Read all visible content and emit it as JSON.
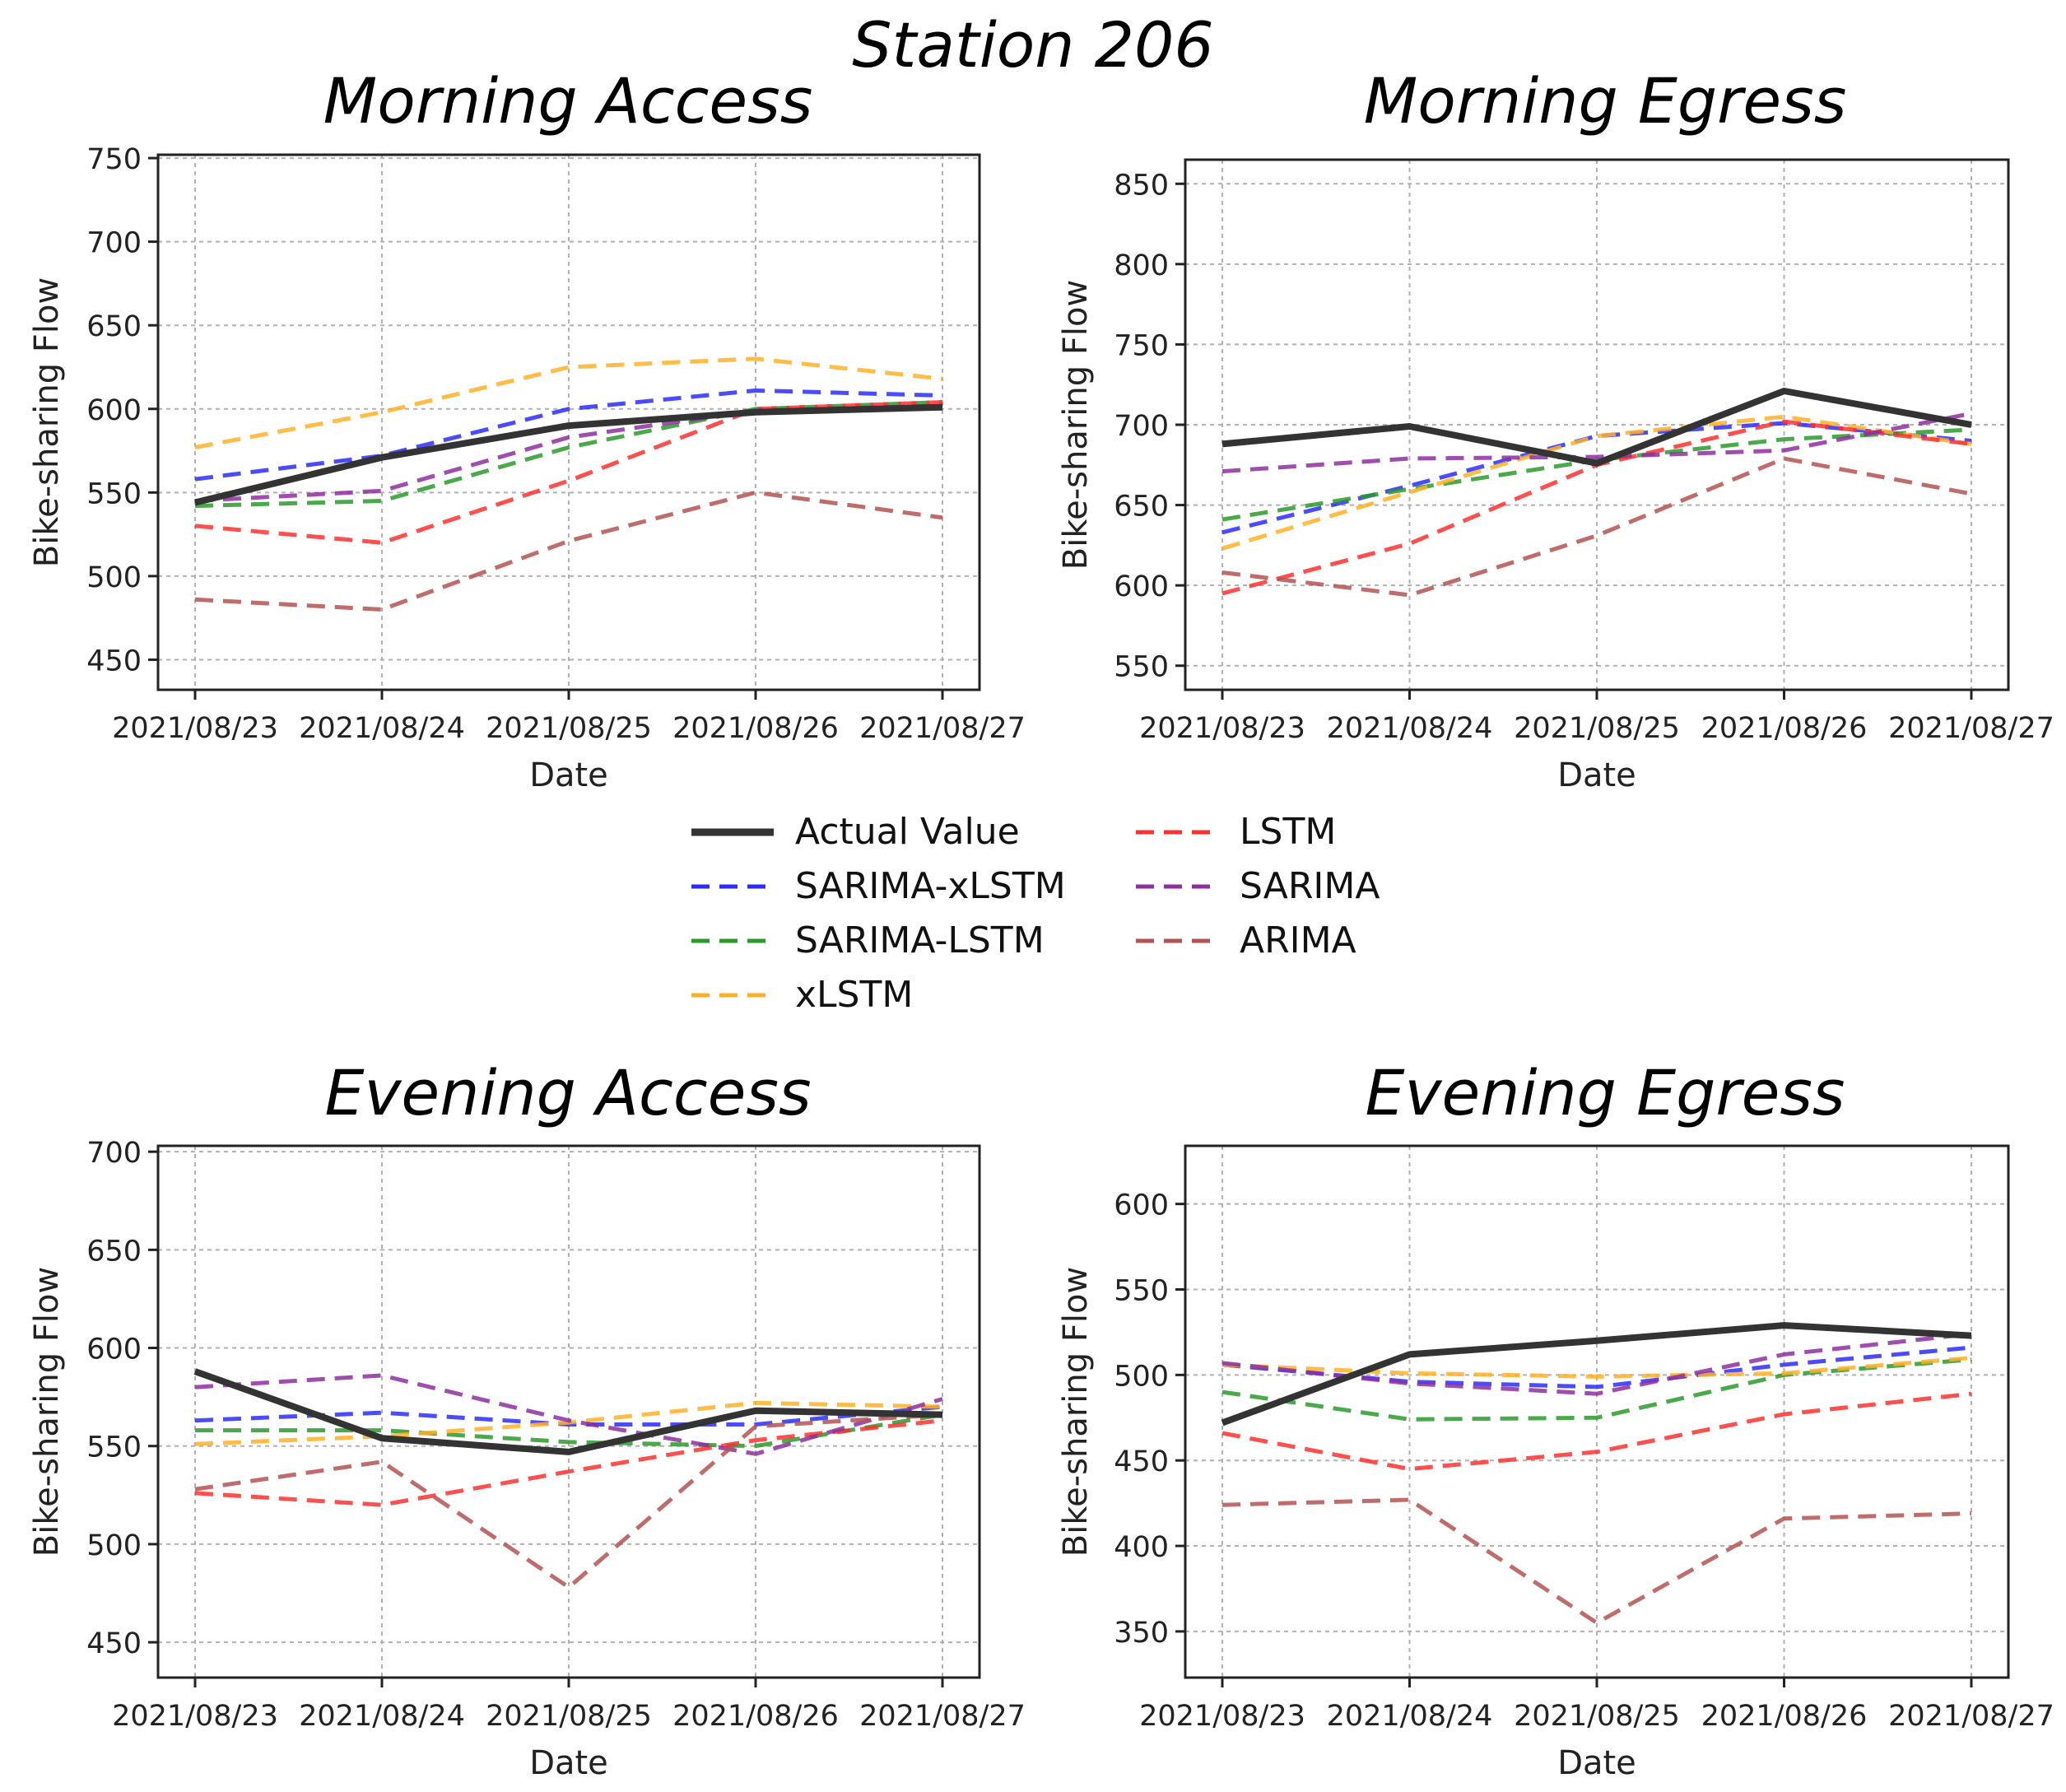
{
  "figure": {
    "title": "Station 206"
  },
  "legend": {
    "items": [
      {
        "name": "Actual Value",
        "color": "#333333",
        "style": "solid"
      },
      {
        "name": "SARIMA-xLSTM",
        "color": "#2b2bff",
        "style": "dashed"
      },
      {
        "name": "SARIMA-LSTM",
        "color": "#2a9a2a",
        "style": "dashed"
      },
      {
        "name": "xLSTM",
        "color": "#ffb027",
        "style": "dashed"
      },
      {
        "name": "LSTM",
        "color": "#ff3030",
        "style": "dashed"
      },
      {
        "name": "SARIMA",
        "color": "#8e2fa0",
        "style": "dashed"
      },
      {
        "name": "ARIMA",
        "color": "#b45252",
        "style": "dashed"
      }
    ]
  },
  "chart_data": [
    {
      "type": "line",
      "title": "Morning Access",
      "xlabel": "Date",
      "ylabel": "Bike-sharing Flow",
      "categories": [
        "2021/08/23",
        "2021/08/24",
        "2021/08/25",
        "2021/08/26",
        "2021/08/27"
      ],
      "yticks": [
        450,
        500,
        550,
        600,
        650,
        700,
        750
      ],
      "ylim": [
        432,
        752
      ],
      "grid": true,
      "series": [
        {
          "name": "Actual Value",
          "values": [
            544,
            571,
            590,
            598,
            601
          ]
        },
        {
          "name": "SARIMA-xLSTM",
          "values": [
            558,
            572,
            600,
            611,
            608
          ]
        },
        {
          "name": "SARIMA-LSTM",
          "values": [
            542,
            545,
            577,
            600,
            604
          ]
        },
        {
          "name": "xLSTM",
          "values": [
            577,
            598,
            625,
            630,
            618
          ]
        },
        {
          "name": "LSTM",
          "values": [
            530,
            520,
            557,
            600,
            604
          ]
        },
        {
          "name": "SARIMA",
          "values": [
            545,
            551,
            583,
            599,
            602
          ]
        },
        {
          "name": "ARIMA",
          "values": [
            486,
            480,
            521,
            550,
            535
          ]
        }
      ]
    },
    {
      "type": "line",
      "title": "Morning Egress",
      "xlabel": "Date",
      "ylabel": "Bike-sharing Flow",
      "categories": [
        "2021/08/23",
        "2021/08/24",
        "2021/08/25",
        "2021/08/26",
        "2021/08/27"
      ],
      "yticks": [
        550,
        600,
        650,
        700,
        750,
        800,
        850
      ],
      "ylim": [
        535,
        865
      ],
      "grid": true,
      "series": [
        {
          "name": "Actual Value",
          "values": [
            688,
            699,
            676,
            721,
            700
          ]
        },
        {
          "name": "SARIMA-xLSTM",
          "values": [
            633,
            662,
            693,
            701,
            690
          ]
        },
        {
          "name": "SARIMA-LSTM",
          "values": [
            641,
            660,
            678,
            691,
            697
          ]
        },
        {
          "name": "xLSTM",
          "values": [
            623,
            658,
            693,
            705,
            688
          ]
        },
        {
          "name": "LSTM",
          "values": [
            595,
            626,
            675,
            702,
            688
          ]
        },
        {
          "name": "SARIMA",
          "values": [
            671,
            679,
            680,
            684,
            707
          ]
        },
        {
          "name": "ARIMA",
          "values": [
            608,
            594,
            631,
            679,
            657
          ]
        }
      ]
    },
    {
      "type": "line",
      "title": "Evening Access",
      "xlabel": "Date",
      "ylabel": "Bike-sharing Flow",
      "categories": [
        "2021/08/23",
        "2021/08/24",
        "2021/08/25",
        "2021/08/26",
        "2021/08/27"
      ],
      "yticks": [
        450,
        500,
        550,
        600,
        650,
        700
      ],
      "ylim": [
        432,
        703
      ],
      "grid": true,
      "series": [
        {
          "name": "Actual Value",
          "values": [
            588,
            554,
            547,
            568,
            566
          ]
        },
        {
          "name": "SARIMA-xLSTM",
          "values": [
            563,
            567,
            561,
            561,
            570
          ]
        },
        {
          "name": "SARIMA-LSTM",
          "values": [
            558,
            558,
            552,
            550,
            566
          ]
        },
        {
          "name": "xLSTM",
          "values": [
            551,
            555,
            562,
            572,
            570
          ]
        },
        {
          "name": "LSTM",
          "values": [
            526,
            520,
            537,
            553,
            563
          ]
        },
        {
          "name": "SARIMA",
          "values": [
            580,
            586,
            563,
            546,
            574
          ]
        },
        {
          "name": "ARIMA",
          "values": [
            528,
            542,
            478,
            560,
            566
          ]
        }
      ]
    },
    {
      "type": "line",
      "title": "Evening Egress",
      "xlabel": "Date",
      "ylabel": "Bike-sharing Flow",
      "categories": [
        "2021/08/23",
        "2021/08/24",
        "2021/08/25",
        "2021/08/26",
        "2021/08/27"
      ],
      "yticks": [
        350,
        400,
        450,
        500,
        550,
        600
      ],
      "ylim": [
        323,
        634
      ],
      "grid": true,
      "series": [
        {
          "name": "Actual Value",
          "values": [
            472,
            512,
            520,
            529,
            523
          ]
        },
        {
          "name": "SARIMA-xLSTM",
          "values": [
            506,
            496,
            493,
            506,
            516
          ]
        },
        {
          "name": "SARIMA-LSTM",
          "values": [
            490,
            474,
            475,
            500,
            509
          ]
        },
        {
          "name": "xLSTM",
          "values": [
            506,
            501,
            499,
            501,
            510
          ]
        },
        {
          "name": "LSTM",
          "values": [
            466,
            445,
            455,
            477,
            489
          ]
        },
        {
          "name": "SARIMA",
          "values": [
            507,
            495,
            489,
            512,
            524
          ]
        },
        {
          "name": "ARIMA",
          "values": [
            424,
            427,
            355,
            416,
            419
          ]
        }
      ]
    }
  ]
}
